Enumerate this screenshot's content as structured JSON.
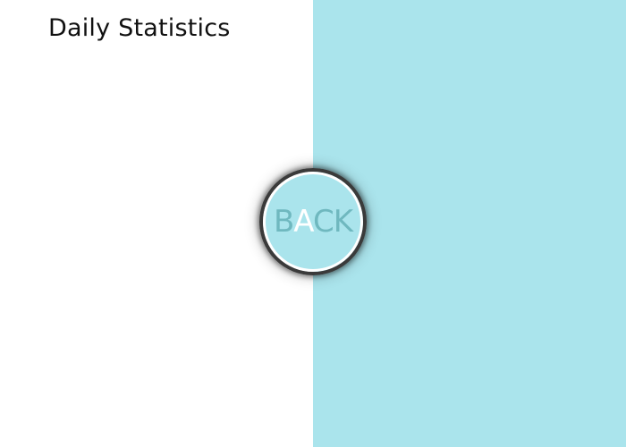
{
  "page": {
    "title": "Daily Statistics"
  },
  "back_button": {
    "label_parts": [
      "B",
      "A",
      "CK"
    ]
  },
  "colors": {
    "left_background": "#ffffff",
    "right_background": "#aae4ec",
    "button_ring": "#3a3a3a",
    "label_color": "#6fb8bf",
    "label_accent": "#ffffff"
  }
}
